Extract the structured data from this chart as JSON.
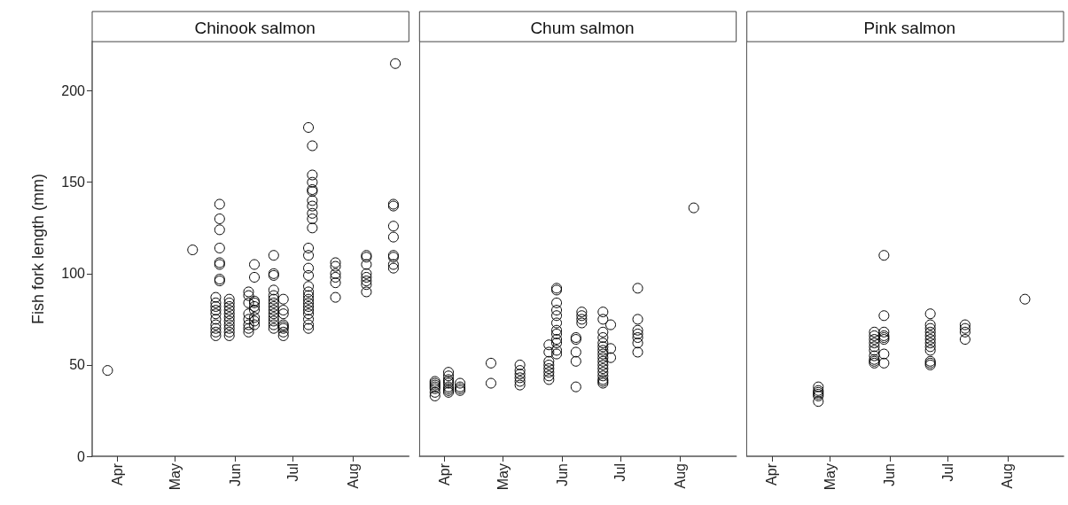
{
  "chart_data": [
    {
      "type": "scatter",
      "title": "Chinook salmon",
      "ylabel": "Fish fork length (mm)",
      "marker": "circle",
      "color": "#000000",
      "x": [
        "--03-27",
        "--05-10",
        "--05-22",
        "--05-22",
        "--05-22",
        "--05-22",
        "--05-22",
        "--05-22",
        "--05-22",
        "--05-22",
        "--05-22",
        "--05-22",
        "--05-24",
        "--05-24",
        "--05-24",
        "--05-24",
        "--05-24",
        "--05-24",
        "--05-24",
        "--05-24",
        "--05-29",
        "--05-29",
        "--05-29",
        "--05-29",
        "--05-29",
        "--05-29",
        "--05-29",
        "--05-29",
        "--05-29",
        "--05-29",
        "--05-29",
        "--06-08",
        "--06-08",
        "--06-08",
        "--06-08",
        "--06-08",
        "--06-08",
        "--06-08",
        "--06-08",
        "--06-11",
        "--06-11",
        "--06-11",
        "--06-11",
        "--06-11",
        "--06-11",
        "--06-11",
        "--06-11",
        "--06-11",
        "--06-21",
        "--06-21",
        "--06-21",
        "--06-21",
        "--06-21",
        "--06-21",
        "--06-21",
        "--06-21",
        "--06-21",
        "--06-21",
        "--06-21",
        "--06-21",
        "--06-21",
        "--06-21",
        "--06-26",
        "--06-26",
        "--06-26",
        "--06-26",
        "--06-26",
        "--06-26",
        "--06-26",
        "--06-26",
        "--07-09",
        "--07-09",
        "--07-09",
        "--07-09",
        "--07-09",
        "--07-09",
        "--07-09",
        "--07-09",
        "--07-09",
        "--07-09",
        "--07-09",
        "--07-09",
        "--07-09",
        "--07-09",
        "--07-09",
        "--07-09",
        "--07-11",
        "--07-11",
        "--07-11",
        "--07-11",
        "--07-11",
        "--07-11",
        "--07-11",
        "--07-11",
        "--07-11",
        "--07-11",
        "--07-23",
        "--07-23",
        "--07-23",
        "--07-23",
        "--07-23",
        "--07-23",
        "--08-08",
        "--08-08",
        "--08-08",
        "--08-08",
        "--08-08",
        "--08-08",
        "--08-08",
        "--08-08",
        "--08-22",
        "--08-22",
        "--08-22",
        "--08-22",
        "--08-22",
        "--08-22",
        "--08-22",
        "--08-22",
        "--08-23"
      ],
      "values": [
        47,
        113,
        87,
        84,
        82,
        80,
        78,
        75,
        72,
        70,
        68,
        66,
        138,
        130,
        124,
        114,
        106,
        105,
        97,
        96,
        86,
        84,
        82,
        80,
        78,
        76,
        74,
        72,
        70,
        68,
        66,
        90,
        88,
        84,
        78,
        75,
        72,
        70,
        68,
        105,
        98,
        85,
        84,
        82,
        80,
        76,
        74,
        72,
        110,
        100,
        99,
        91,
        88,
        86,
        84,
        82,
        80,
        78,
        76,
        74,
        72,
        70,
        86,
        80,
        78,
        72,
        71,
        70,
        68,
        66,
        180,
        114,
        110,
        103,
        99,
        93,
        90,
        88,
        86,
        84,
        82,
        80,
        78,
        75,
        72,
        70,
        170,
        154,
        150,
        146,
        145,
        140,
        137,
        133,
        130,
        125,
        106,
        104,
        100,
        98,
        95,
        87,
        110,
        109,
        105,
        100,
        98,
        96,
        94,
        90,
        138,
        137,
        126,
        120,
        110,
        109,
        105,
        103,
        215
      ],
      "xlim": [
        "--03-19",
        "--08-30"
      ],
      "xticks": [
        {
          "value": "--04-01",
          "label": "Apr"
        },
        {
          "value": "--05-01",
          "label": "May"
        },
        {
          "value": "--06-01",
          "label": "Jun"
        },
        {
          "value": "--07-01",
          "label": "Jul"
        },
        {
          "value": "--08-01",
          "label": "Aug"
        }
      ],
      "ylim": [
        0,
        227
      ],
      "yticks": [
        0,
        50,
        100,
        150,
        200
      ]
    },
    {
      "type": "scatter",
      "title": "Chum salmon",
      "marker": "circle",
      "color": "#000000",
      "tick_labels": "x",
      "x": [
        "--03-27",
        "--03-27",
        "--03-27",
        "--03-27",
        "--03-27",
        "--03-27",
        "--03-27",
        "--04-03",
        "--04-03",
        "--04-03",
        "--04-03",
        "--04-03",
        "--04-03",
        "--04-03",
        "--04-03",
        "--04-03",
        "--04-09",
        "--04-09",
        "--04-09",
        "--04-09",
        "--04-25",
        "--04-25",
        "--05-10",
        "--05-10",
        "--05-10",
        "--05-10",
        "--05-10",
        "--05-10",
        "--05-25",
        "--05-25",
        "--05-25",
        "--05-25",
        "--05-25",
        "--05-25",
        "--05-25",
        "--05-25",
        "--05-29",
        "--05-29",
        "--05-29",
        "--05-29",
        "--05-29",
        "--05-29",
        "--05-29",
        "--05-29",
        "--05-29",
        "--05-29",
        "--05-29",
        "--05-29",
        "--06-08",
        "--06-08",
        "--06-08",
        "--06-08",
        "--06-08",
        "--06-11",
        "--06-11",
        "--06-11",
        "--06-11",
        "--06-22",
        "--06-22",
        "--06-22",
        "--06-22",
        "--06-22",
        "--06-22",
        "--06-22",
        "--06-22",
        "--06-22",
        "--06-22",
        "--06-22",
        "--06-22",
        "--06-22",
        "--06-22",
        "--06-22",
        "--06-22",
        "--06-22",
        "--06-26",
        "--06-26",
        "--06-26",
        "--07-10",
        "--07-10",
        "--07-10",
        "--07-10",
        "--07-10",
        "--07-10",
        "--07-10",
        "--08-08"
      ],
      "values": [
        41,
        40,
        39,
        38,
        37,
        35,
        33,
        46,
        44,
        42,
        41,
        40,
        38,
        37,
        36,
        35,
        40,
        38,
        37,
        36,
        51,
        40,
        50,
        47,
        45,
        43,
        41,
        39,
        61,
        57,
        52,
        50,
        48,
        46,
        44,
        42,
        92,
        91,
        84,
        80,
        77,
        73,
        69,
        67,
        64,
        62,
        58,
        56,
        65,
        64,
        57,
        52,
        38,
        79,
        77,
        75,
        73,
        79,
        75,
        68,
        65,
        62,
        60,
        58,
        56,
        54,
        52,
        50,
        48,
        46,
        44,
        42,
        41,
        40,
        72,
        59,
        54,
        92,
        75,
        69,
        67,
        65,
        62,
        57,
        136
      ],
      "xlim": [
        "--03-19",
        "--08-30"
      ],
      "xticks": [
        {
          "value": "--04-01",
          "label": "Apr"
        },
        {
          "value": "--05-01",
          "label": "May"
        },
        {
          "value": "--06-01",
          "label": "Jun"
        },
        {
          "value": "--07-01",
          "label": "Jul"
        },
        {
          "value": "--08-01",
          "label": "Aug"
        }
      ],
      "ylim": [
        0,
        227
      ],
      "yticks": [
        0,
        50,
        100,
        150,
        200
      ]
    },
    {
      "type": "scatter",
      "title": "Pink salmon",
      "marker": "circle",
      "color": "#000000",
      "tick_labels": "x",
      "x": [
        "--04-25",
        "--04-25",
        "--04-25",
        "--04-25",
        "--04-25",
        "--04-25",
        "--05-24",
        "--05-24",
        "--05-24",
        "--05-24",
        "--05-24",
        "--05-24",
        "--05-24",
        "--05-24",
        "--05-24",
        "--05-24",
        "--05-29",
        "--05-29",
        "--05-29",
        "--05-29",
        "--05-29",
        "--05-29",
        "--05-29",
        "--05-29",
        "--06-22",
        "--06-22",
        "--06-22",
        "--06-22",
        "--06-22",
        "--06-22",
        "--06-22",
        "--06-22",
        "--06-22",
        "--06-22",
        "--06-22",
        "--06-22",
        "--07-10",
        "--07-10",
        "--07-10",
        "--07-10",
        "--08-10"
      ],
      "values": [
        38,
        36,
        35,
        34,
        33,
        30,
        68,
        66,
        64,
        62,
        60,
        58,
        55,
        53,
        52,
        51,
        110,
        77,
        68,
        66,
        65,
        64,
        56,
        51,
        78,
        72,
        70,
        68,
        66,
        64,
        62,
        60,
        58,
        52,
        51,
        50,
        72,
        70,
        68,
        64,
        86
      ],
      "xlim": [
        "--03-19",
        "--08-30"
      ],
      "xticks": [
        {
          "value": "--04-01",
          "label": "Apr"
        },
        {
          "value": "--05-01",
          "label": "May"
        },
        {
          "value": "--06-01",
          "label": "Jun"
        },
        {
          "value": "--07-01",
          "label": "Jul"
        },
        {
          "value": "--08-01",
          "label": "Aug"
        }
      ],
      "ylim": [
        0,
        227
      ],
      "yticks": [
        0,
        50,
        100,
        150,
        200
      ]
    }
  ]
}
